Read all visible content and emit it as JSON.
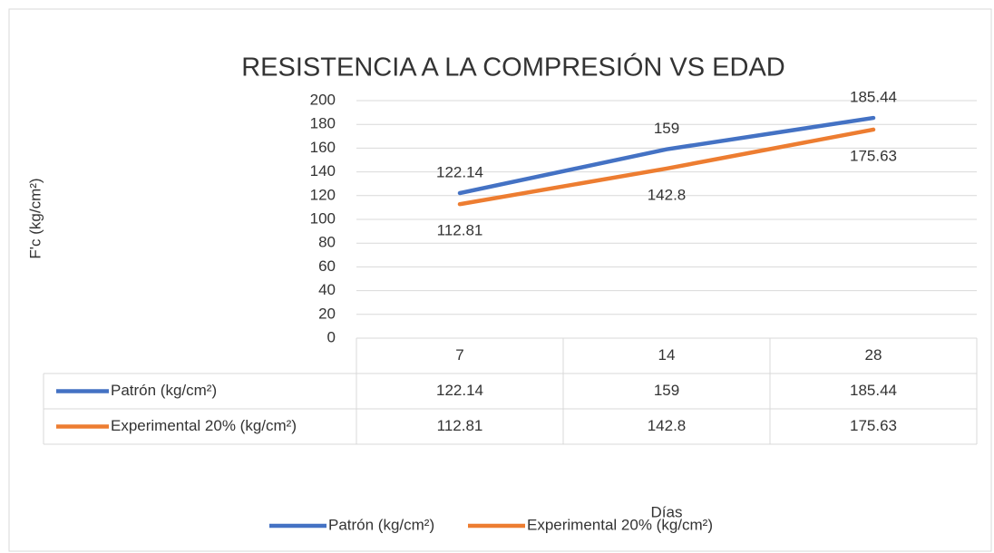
{
  "chart_data": {
    "type": "line",
    "title": "RESISTENCIA A LA COMPRESIÓN VS EDAD",
    "y_label": "F'c (kg/cm²)",
    "x_label": "Días",
    "categories": [
      "7",
      "14",
      "28"
    ],
    "series": [
      {
        "name": "Patrón (kg/cm²)",
        "color": "#4472c4",
        "values": [
          122.14,
          159,
          185.44
        ]
      },
      {
        "name": "Experimental 20% (kg/cm²)",
        "color": "#ed7d31",
        "values": [
          112.81,
          142.8,
          175.63
        ]
      }
    ],
    "ylim": [
      0,
      200
    ],
    "yticks": [
      0,
      20,
      40,
      60,
      80,
      100,
      120,
      140,
      160,
      180,
      200
    ],
    "grid": true,
    "legend": "bottom",
    "data_table": true
  }
}
